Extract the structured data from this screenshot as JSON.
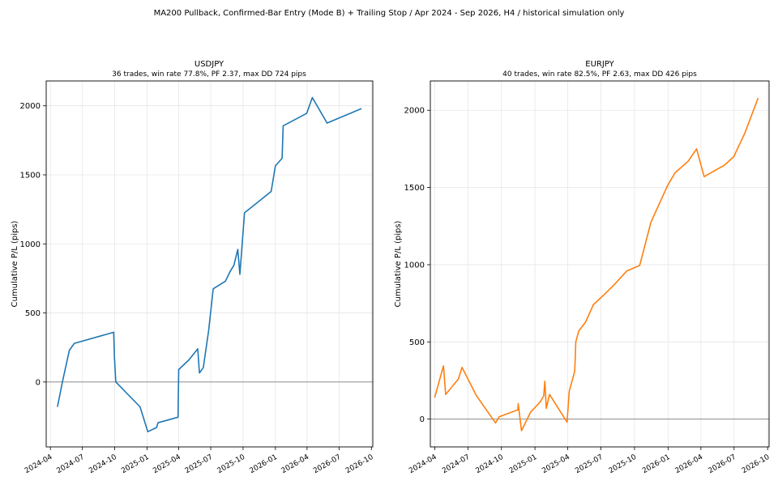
{
  "figure": {
    "suptitle": "MA200 Pullback, Confirmed-Bar Entry (Mode B) + Trailing Stop / Apr 2024 - Sep 2026, H4 / historical simulation only"
  },
  "chart_data": [
    {
      "type": "line",
      "title": "USDJPY",
      "subtitle": "36 trades, win rate 77.8%, PF 2.37, max DD 724 pips",
      "xlabel": "",
      "ylabel": "Cumulative P/L (pips)",
      "xlim": [
        "2024-03-20",
        "2026-10-05"
      ],
      "ylim": [
        -470,
        2180
      ],
      "xticks": [
        "2024-04",
        "2024-07",
        "2024-10",
        "2025-01",
        "2025-04",
        "2025-07",
        "2025-10",
        "2026-01",
        "2026-04",
        "2026-07",
        "2026-10"
      ],
      "yticks": [
        0,
        500,
        1000,
        1500,
        2000
      ],
      "grid": true,
      "zero_line": true,
      "color": "#1f77b4",
      "series": [
        {
          "x": [
            "2024-04-21",
            "2024-05-05",
            "2024-05-25",
            "2024-06-08",
            "2024-09-28",
            "2024-09-30",
            "2024-10-04",
            "2024-12-12",
            "2025-01-03",
            "2025-01-28",
            "2025-02-01",
            "2025-03-30",
            "2025-04-01",
            "2025-04-30",
            "2025-05-25",
            "2025-05-30",
            "2025-06-10",
            "2025-06-25",
            "2025-07-08",
            "2025-08-12",
            "2025-08-25",
            "2025-09-05",
            "2025-09-16",
            "2025-09-22",
            "2025-10-05",
            "2025-12-20",
            "2026-01-01",
            "2026-01-20",
            "2026-01-23",
            "2026-03-31",
            "2026-04-16",
            "2026-05-28",
            "2026-09-03"
          ],
          "y": [
            -180,
            0,
            230,
            280,
            360,
            180,
            0,
            -180,
            -360,
            -330,
            -295,
            -255,
            90,
            160,
            240,
            65,
            105,
            370,
            675,
            730,
            800,
            845,
            960,
            780,
            1225,
            1380,
            1565,
            1620,
            1855,
            1945,
            2060,
            1875,
            1980
          ]
        }
      ]
    },
    {
      "type": "line",
      "title": "EURJPY",
      "subtitle": "40 trades, win rate 82.5%, PF 2.63, max DD 426 pips",
      "xlabel": "",
      "ylabel": "Cumulative P/L (pips)",
      "xlim": [
        "2024-03-20",
        "2026-10-05"
      ],
      "ylim": [
        -180,
        2190
      ],
      "xticks": [
        "2024-04",
        "2024-07",
        "2024-10",
        "2025-01",
        "2025-04",
        "2025-07",
        "2025-10",
        "2026-01",
        "2026-04",
        "2026-07",
        "2026-10"
      ],
      "yticks": [
        0,
        500,
        1000,
        1500,
        2000
      ],
      "grid": true,
      "zero_line": true,
      "color": "#ff7f0e",
      "series": [
        {
          "x": [
            "2024-04-01",
            "2024-04-25",
            "2024-05-01",
            "2024-06-05",
            "2024-06-15",
            "2024-07-25",
            "2024-09-15",
            "2024-09-25",
            "2024-11-15",
            "2024-11-16",
            "2024-11-25",
            "2024-12-20",
            "2025-01-15",
            "2025-01-25",
            "2025-01-28",
            "2025-02-01",
            "2025-02-10",
            "2025-03-30",
            "2025-04-05",
            "2025-04-20",
            "2025-04-23",
            "2025-05-01",
            "2025-05-20",
            "2025-06-10",
            "2025-07-20",
            "2025-08-10",
            "2025-09-10",
            "2025-10-15",
            "2025-11-15",
            "2025-12-30",
            "2026-01-20",
            "2026-02-25",
            "2026-03-20",
            "2026-04-10",
            "2026-06-05",
            "2026-06-30",
            "2026-07-30",
            "2026-09-05"
          ],
          "y": [
            140,
            345,
            160,
            260,
            335,
            150,
            -25,
            15,
            60,
            100,
            -75,
            45,
            110,
            150,
            245,
            70,
            160,
            -20,
            180,
            310,
            500,
            570,
            630,
            740,
            830,
            880,
            960,
            995,
            1275,
            1510,
            1595,
            1670,
            1750,
            1570,
            1645,
            1700,
            1850,
            2080
          ]
        }
      ]
    }
  ]
}
